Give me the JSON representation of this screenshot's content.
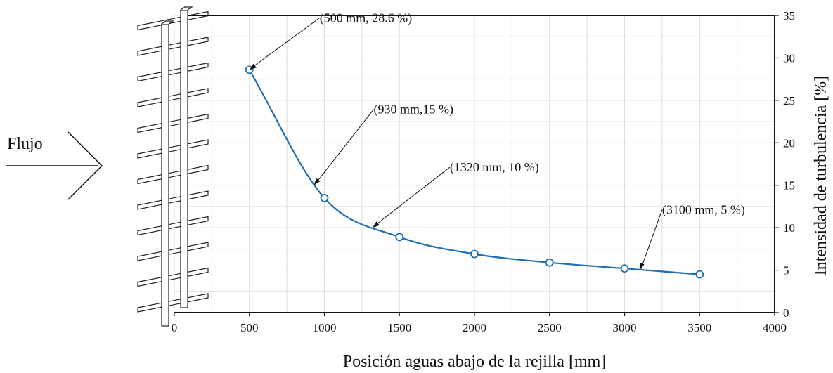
{
  "chart_data": {
    "type": "line",
    "xlabel": "Posición aguas abajo de la rejilla [mm]",
    "ylabel": "Intensidad de turbulencia [%]",
    "xlim": [
      0,
      4000
    ],
    "ylim": [
      0,
      35
    ],
    "x_ticks": [
      "0",
      "500",
      "1000",
      "1500",
      "2000",
      "2500",
      "3000",
      "3500",
      "4000"
    ],
    "y_ticks": [
      "0",
      "5",
      "10",
      "15",
      "20",
      "25",
      "30",
      "35"
    ],
    "grid": true,
    "y_axis_side": "right",
    "series": [
      {
        "x": [
          500,
          1000,
          1500,
          2000,
          2500,
          3000,
          3500
        ],
        "y": [
          28.6,
          13.5,
          8.9,
          6.9,
          5.9,
          5.2,
          4.5
        ],
        "color": "#1f6fb5"
      }
    ],
    "annotations": [
      {
        "text": "(500 mm, 28.6 %)",
        "x": 500,
        "y": 28.6
      },
      {
        "text": "(930 mm,15 %)",
        "x": 930,
        "y": 15
      },
      {
        "text": "(1320 mm, 10 %)",
        "x": 1320,
        "y": 10
      },
      {
        "text": "(3100 mm, 5 %)",
        "x": 3100,
        "y": 5
      }
    ],
    "flow_label": "Flujo"
  }
}
